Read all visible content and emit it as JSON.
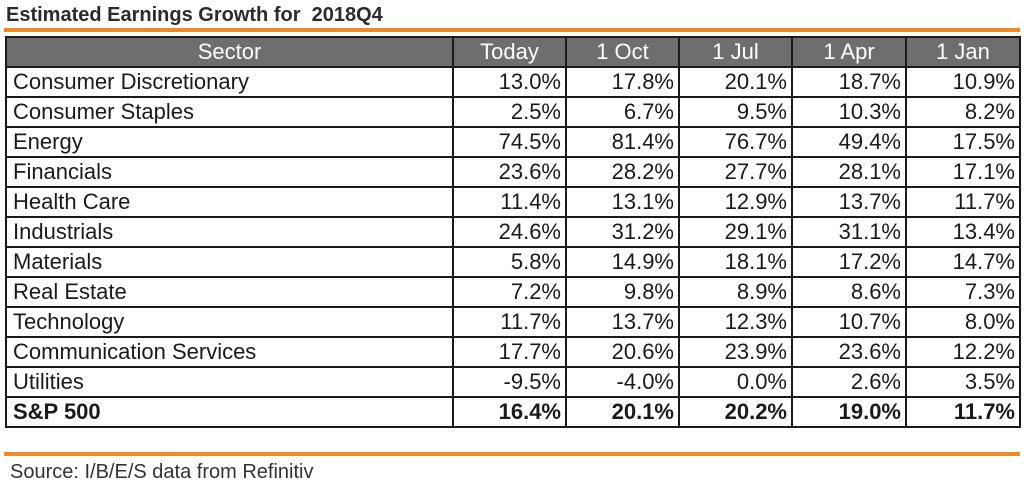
{
  "title": "Estimated Earnings Growth for  2018Q4",
  "columns": [
    "Sector",
    "Today",
    "1 Oct",
    "1 Jul",
    "1 Apr",
    "1 Jan"
  ],
  "rows": [
    {
      "sector": "Consumer Discretionary",
      "values": [
        "13.0%",
        "17.8%",
        "20.1%",
        "18.7%",
        "10.9%"
      ]
    },
    {
      "sector": "Consumer Staples",
      "values": [
        "2.5%",
        "6.7%",
        "9.5%",
        "10.3%",
        "8.2%"
      ]
    },
    {
      "sector": "Energy",
      "values": [
        "74.5%",
        "81.4%",
        "76.7%",
        "49.4%",
        "17.5%"
      ]
    },
    {
      "sector": "Financials",
      "values": [
        "23.6%",
        "28.2%",
        "27.7%",
        "28.1%",
        "17.1%"
      ]
    },
    {
      "sector": "Health Care",
      "values": [
        "11.4%",
        "13.1%",
        "12.9%",
        "13.7%",
        "11.7%"
      ]
    },
    {
      "sector": "Industrials",
      "values": [
        "24.6%",
        "31.2%",
        "29.1%",
        "31.1%",
        "13.4%"
      ]
    },
    {
      "sector": "Materials",
      "values": [
        "5.8%",
        "14.9%",
        "18.1%",
        "17.2%",
        "14.7%"
      ]
    },
    {
      "sector": "Real Estate",
      "values": [
        "7.2%",
        "9.8%",
        "8.9%",
        "8.6%",
        "7.3%"
      ]
    },
    {
      "sector": "Technology",
      "values": [
        "11.7%",
        "13.7%",
        "12.3%",
        "10.7%",
        "8.0%"
      ]
    },
    {
      "sector": "Communication Services",
      "values": [
        "17.7%",
        "20.6%",
        "23.9%",
        "23.6%",
        "12.2%"
      ]
    },
    {
      "sector": "Utilities",
      "values": [
        "-9.5%",
        "-4.0%",
        "0.0%",
        "2.6%",
        "3.5%"
      ]
    }
  ],
  "total": {
    "sector": "S&P 500",
    "values": [
      "16.4%",
      "20.1%",
      "20.2%",
      "19.0%",
      "11.7%"
    ]
  },
  "source": "Source: I/B/E/S data from Refinitiv",
  "colors": {
    "accent": "#f08a24",
    "header_bg": "#6e6e6e",
    "header_text": "#ffffff",
    "border": "#1a1a1a"
  }
}
